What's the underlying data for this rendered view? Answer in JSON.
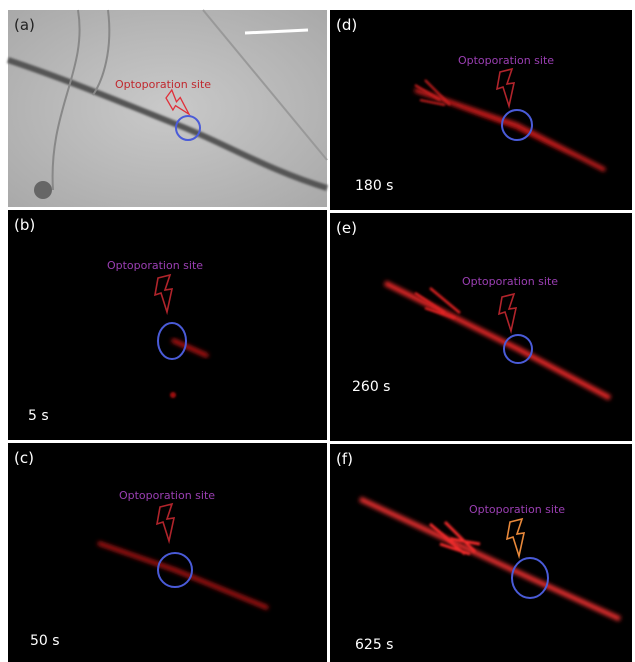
{
  "panels": [
    {
      "label": "(a)",
      "annotation": "Optoporation site"
    },
    {
      "label": "(b)",
      "annotation": "Optoporation site",
      "time": "5 s"
    },
    {
      "label": "(c)",
      "annotation": "Optoporation site",
      "time": "50 s"
    },
    {
      "label": "(d)",
      "annotation": "Optoporation site",
      "time": "180 s"
    },
    {
      "label": "(e)",
      "annotation": "Optoporation site",
      "time": "260 s"
    },
    {
      "label": "(f)",
      "annotation": "Optoporation site",
      "time": "625 s"
    }
  ]
}
